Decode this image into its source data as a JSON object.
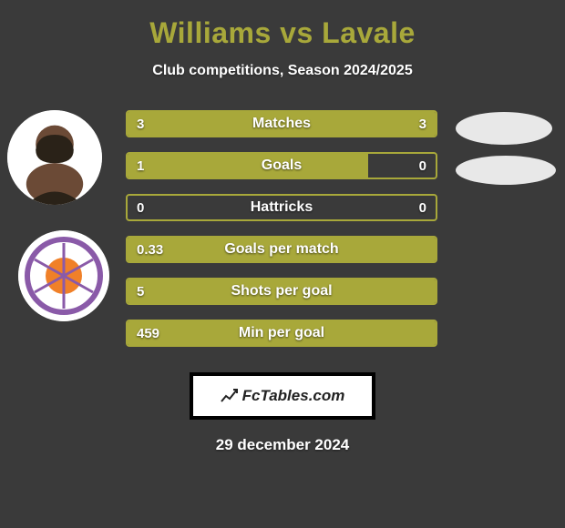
{
  "header": {
    "title": "Williams vs Lavale",
    "subtitle": "Club competitions, Season 2024/2025",
    "title_color": "#a8a83a",
    "subtitle_color": "#ffffff"
  },
  "chart": {
    "type": "comparison-bar",
    "bar_border_color": "#a8a83a",
    "bar_fill_color": "#a8a83a",
    "background_color": "#3a3a3a",
    "label_fontsize": 16,
    "value_fontsize": 15,
    "rows": [
      {
        "label": "Matches",
        "left": "3",
        "right": "3",
        "left_pct": 50,
        "right_pct": 50
      },
      {
        "label": "Goals",
        "left": "1",
        "right": "0",
        "left_pct": 78,
        "right_pct": 0
      },
      {
        "label": "Hattricks",
        "left": "0",
        "right": "0",
        "left_pct": 0,
        "right_pct": 0
      },
      {
        "label": "Goals per match",
        "left": "0.33",
        "right": "",
        "left_pct": 100,
        "right_pct": 0
      },
      {
        "label": "Shots per goal",
        "left": "5",
        "right": "",
        "left_pct": 100,
        "right_pct": 0
      },
      {
        "label": "Min per goal",
        "left": "459",
        "right": "",
        "left_pct": 100,
        "right_pct": 0
      }
    ]
  },
  "left_side": {
    "player_avatar": {
      "name": "player-avatar",
      "bg": "#ffffff"
    },
    "club_badge": {
      "name": "club-badge",
      "ring_color": "#8a5aa8",
      "ball_color": "#f08028"
    }
  },
  "right_side": {
    "oval_color": "#e8e8e8"
  },
  "footer": {
    "logo_text": "FcTables.com",
    "date": "29 december 2024",
    "logo_bg": "#ffffff",
    "logo_border": "#000000"
  }
}
